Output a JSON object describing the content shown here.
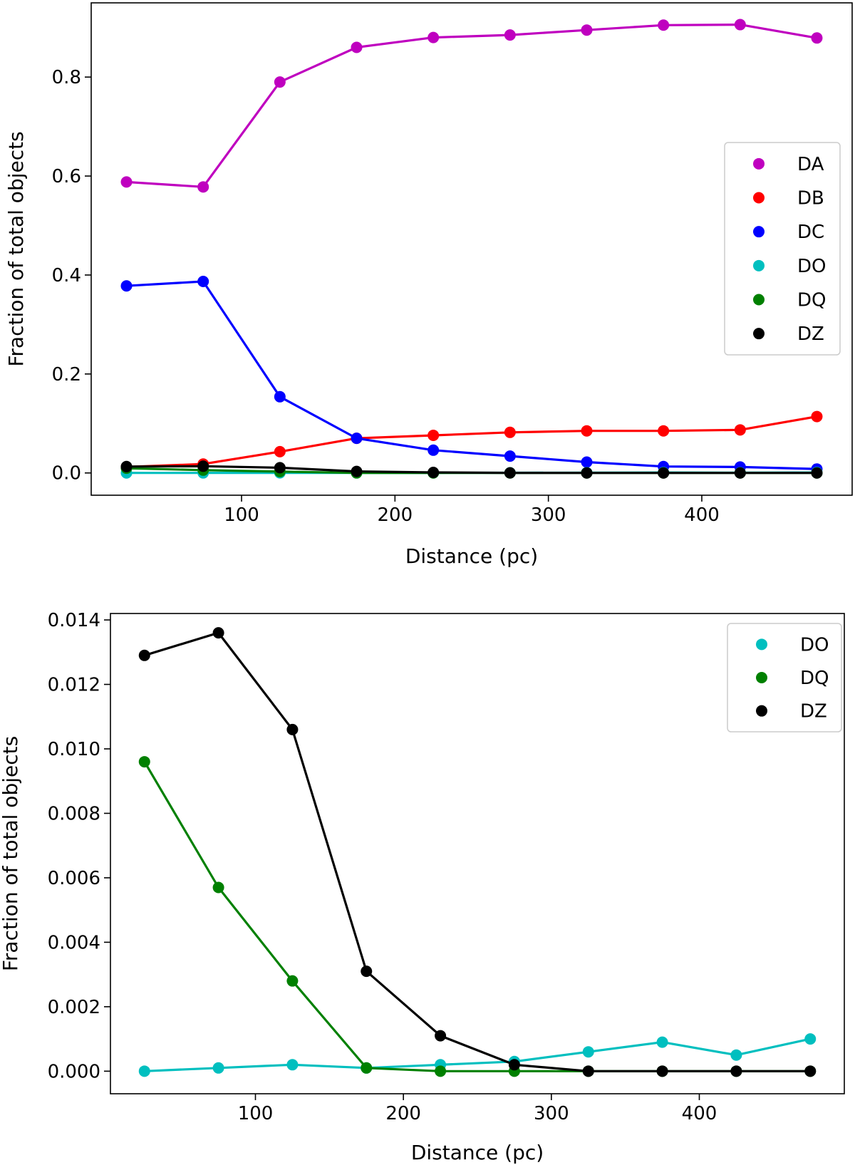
{
  "chart_data": [
    {
      "type": "line",
      "title": "",
      "xlabel": "Distance (pc)",
      "ylabel": "Fraction of total objects",
      "xlim": [
        2,
        498
      ],
      "ylim": [
        -0.045,
        0.95
      ],
      "xticks": [
        100,
        200,
        300,
        400
      ],
      "yticks": [
        0.0,
        0.2,
        0.4,
        0.6,
        0.8
      ],
      "ytick_labels": [
        "0.0",
        "0.2",
        "0.4",
        "0.6",
        "0.8"
      ],
      "legend_position": "center-right",
      "x": [
        25,
        75,
        125,
        175,
        225,
        275,
        325,
        375,
        425,
        475
      ],
      "series": [
        {
          "name": "DA",
          "color": "#bf00bf",
          "values": [
            0.588,
            0.578,
            0.79,
            0.86,
            0.88,
            0.885,
            0.895,
            0.905,
            0.906,
            0.879
          ]
        },
        {
          "name": "DB",
          "color": "#ff0000",
          "values": [
            0.012,
            0.018,
            0.043,
            0.07,
            0.076,
            0.082,
            0.085,
            0.085,
            0.087,
            0.114
          ]
        },
        {
          "name": "DC",
          "color": "#0000ff",
          "values": [
            0.378,
            0.387,
            0.154,
            0.07,
            0.046,
            0.034,
            0.022,
            0.013,
            0.012,
            0.008
          ]
        },
        {
          "name": "DO",
          "color": "#00bfbf",
          "values": [
            0.0,
            0.0001,
            0.0002,
            0.0001,
            0.0002,
            0.0003,
            0.0006,
            0.0009,
            0.0005,
            0.001
          ]
        },
        {
          "name": "DQ",
          "color": "#008000",
          "values": [
            0.0096,
            0.0057,
            0.0028,
            0.0001,
            0.0,
            0.0,
            0.0,
            0.0,
            0.0,
            0.0
          ]
        },
        {
          "name": "DZ",
          "color": "#000000",
          "values": [
            0.0129,
            0.0136,
            0.0106,
            0.0031,
            0.0011,
            0.0002,
            0.0,
            0.0,
            0.0,
            0.0
          ]
        }
      ]
    },
    {
      "type": "line",
      "title": "",
      "xlabel": "Distance (pc)",
      "ylabel": "Fraction of total objects",
      "xlim": [
        2,
        498
      ],
      "ylim": [
        -0.0007,
        0.0142
      ],
      "xticks": [
        100,
        200,
        300,
        400
      ],
      "yticks": [
        0.0,
        0.002,
        0.004,
        0.006,
        0.008,
        0.01,
        0.012,
        0.014
      ],
      "ytick_labels": [
        "0.000",
        "0.002",
        "0.004",
        "0.006",
        "0.008",
        "0.010",
        "0.012",
        "0.014"
      ],
      "legend_position": "top-right",
      "x": [
        25,
        75,
        125,
        175,
        225,
        275,
        325,
        375,
        425,
        475
      ],
      "series": [
        {
          "name": "DO",
          "color": "#00bfbf",
          "values": [
            0.0,
            0.0001,
            0.0002,
            0.0001,
            0.0002,
            0.0003,
            0.0006,
            0.0009,
            0.0005,
            0.001
          ]
        },
        {
          "name": "DQ",
          "color": "#008000",
          "values": [
            0.0096,
            0.0057,
            0.0028,
            0.0001,
            0.0,
            0.0,
            0.0,
            0.0,
            0.0,
            0.0
          ]
        },
        {
          "name": "DZ",
          "color": "#000000",
          "values": [
            0.0129,
            0.0136,
            0.0106,
            0.0031,
            0.0011,
            0.0002,
            0.0,
            0.0,
            0.0,
            0.0
          ]
        }
      ]
    }
  ]
}
